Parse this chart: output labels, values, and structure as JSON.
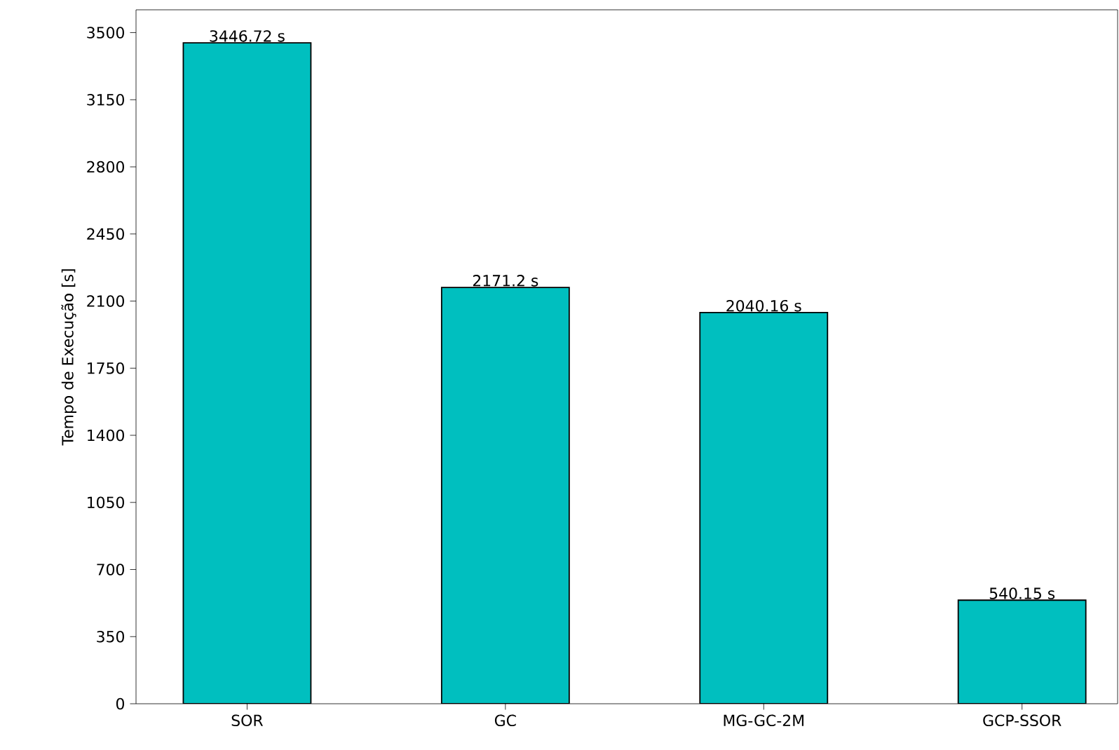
{
  "chart_data": {
    "type": "bar",
    "ylabel": "Tempo de Execução [s]",
    "categories": [
      "SOR",
      "GC",
      "MG-GC-2M",
      "GCP-SSOR"
    ],
    "values": [
      3446.72,
      2171.2,
      2040.16,
      540.15
    ],
    "value_labels": [
      "3446.72 s",
      "2171.2 s",
      "2040.16 s",
      "540.15 s"
    ],
    "color": "#00bfbf",
    "ylim": [
      0,
      3619
    ],
    "yticks": [
      0,
      350,
      700,
      1050,
      1400,
      1750,
      2100,
      2450,
      2800,
      3150,
      3500
    ]
  }
}
